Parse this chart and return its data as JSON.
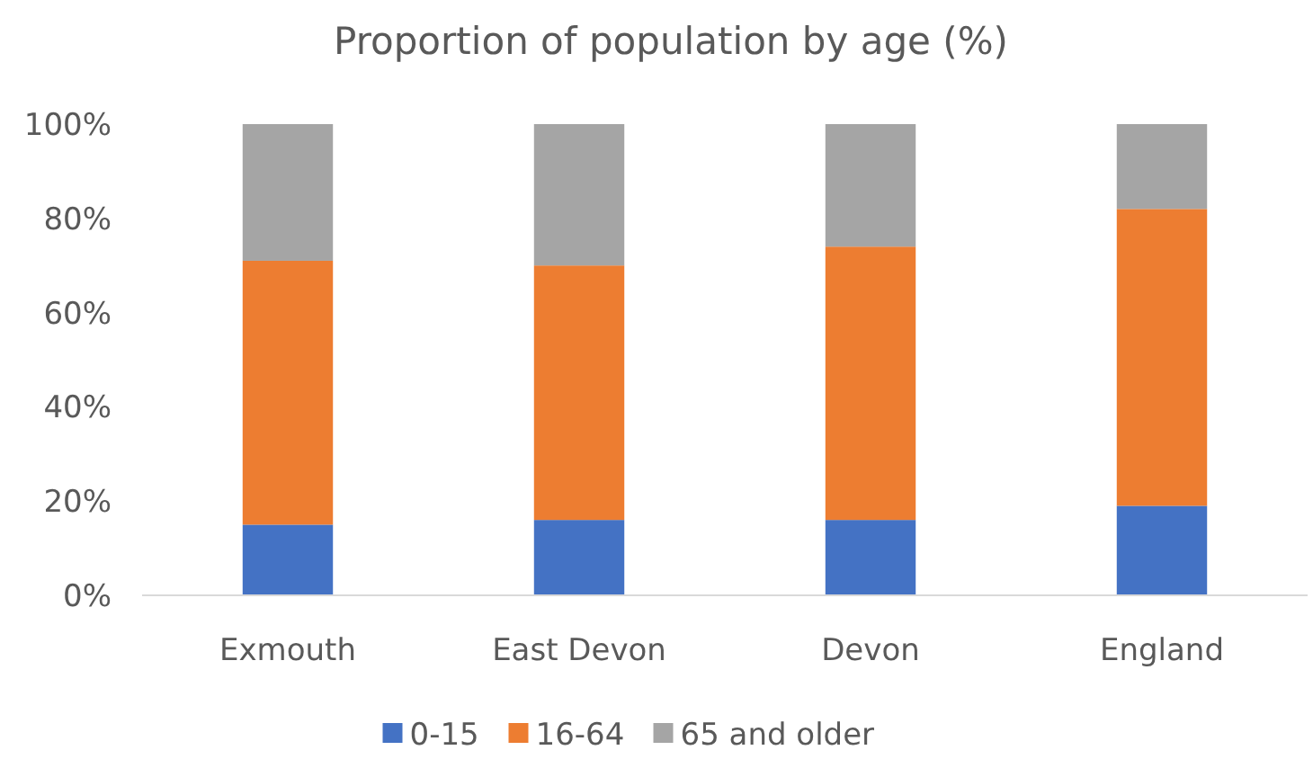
{
  "chart_data": {
    "type": "bar",
    "title": "Proportion of population by age (%)",
    "stacked": true,
    "categories": [
      "Exmouth",
      "East Devon",
      "Devon",
      "England"
    ],
    "series": [
      {
        "name": "0-15",
        "color": "#4472c4",
        "values": [
          15,
          16,
          16,
          19
        ]
      },
      {
        "name": "16-64",
        "color": "#ed7d31",
        "values": [
          56,
          54,
          58,
          63
        ]
      },
      {
        "name": "65 and older",
        "color": "#a5a5a5",
        "values": [
          29,
          30,
          26,
          18
        ]
      }
    ],
    "ylim": [
      0,
      100
    ],
    "yticks": [
      {
        "value": 0,
        "label": "0%"
      },
      {
        "value": 20,
        "label": "20%"
      },
      {
        "value": 40,
        "label": "40%"
      },
      {
        "value": 60,
        "label": "60%"
      },
      {
        "value": 80,
        "label": "80%"
      },
      {
        "value": 100,
        "label": "100%"
      }
    ],
    "grid": false,
    "legend": "bottom"
  }
}
